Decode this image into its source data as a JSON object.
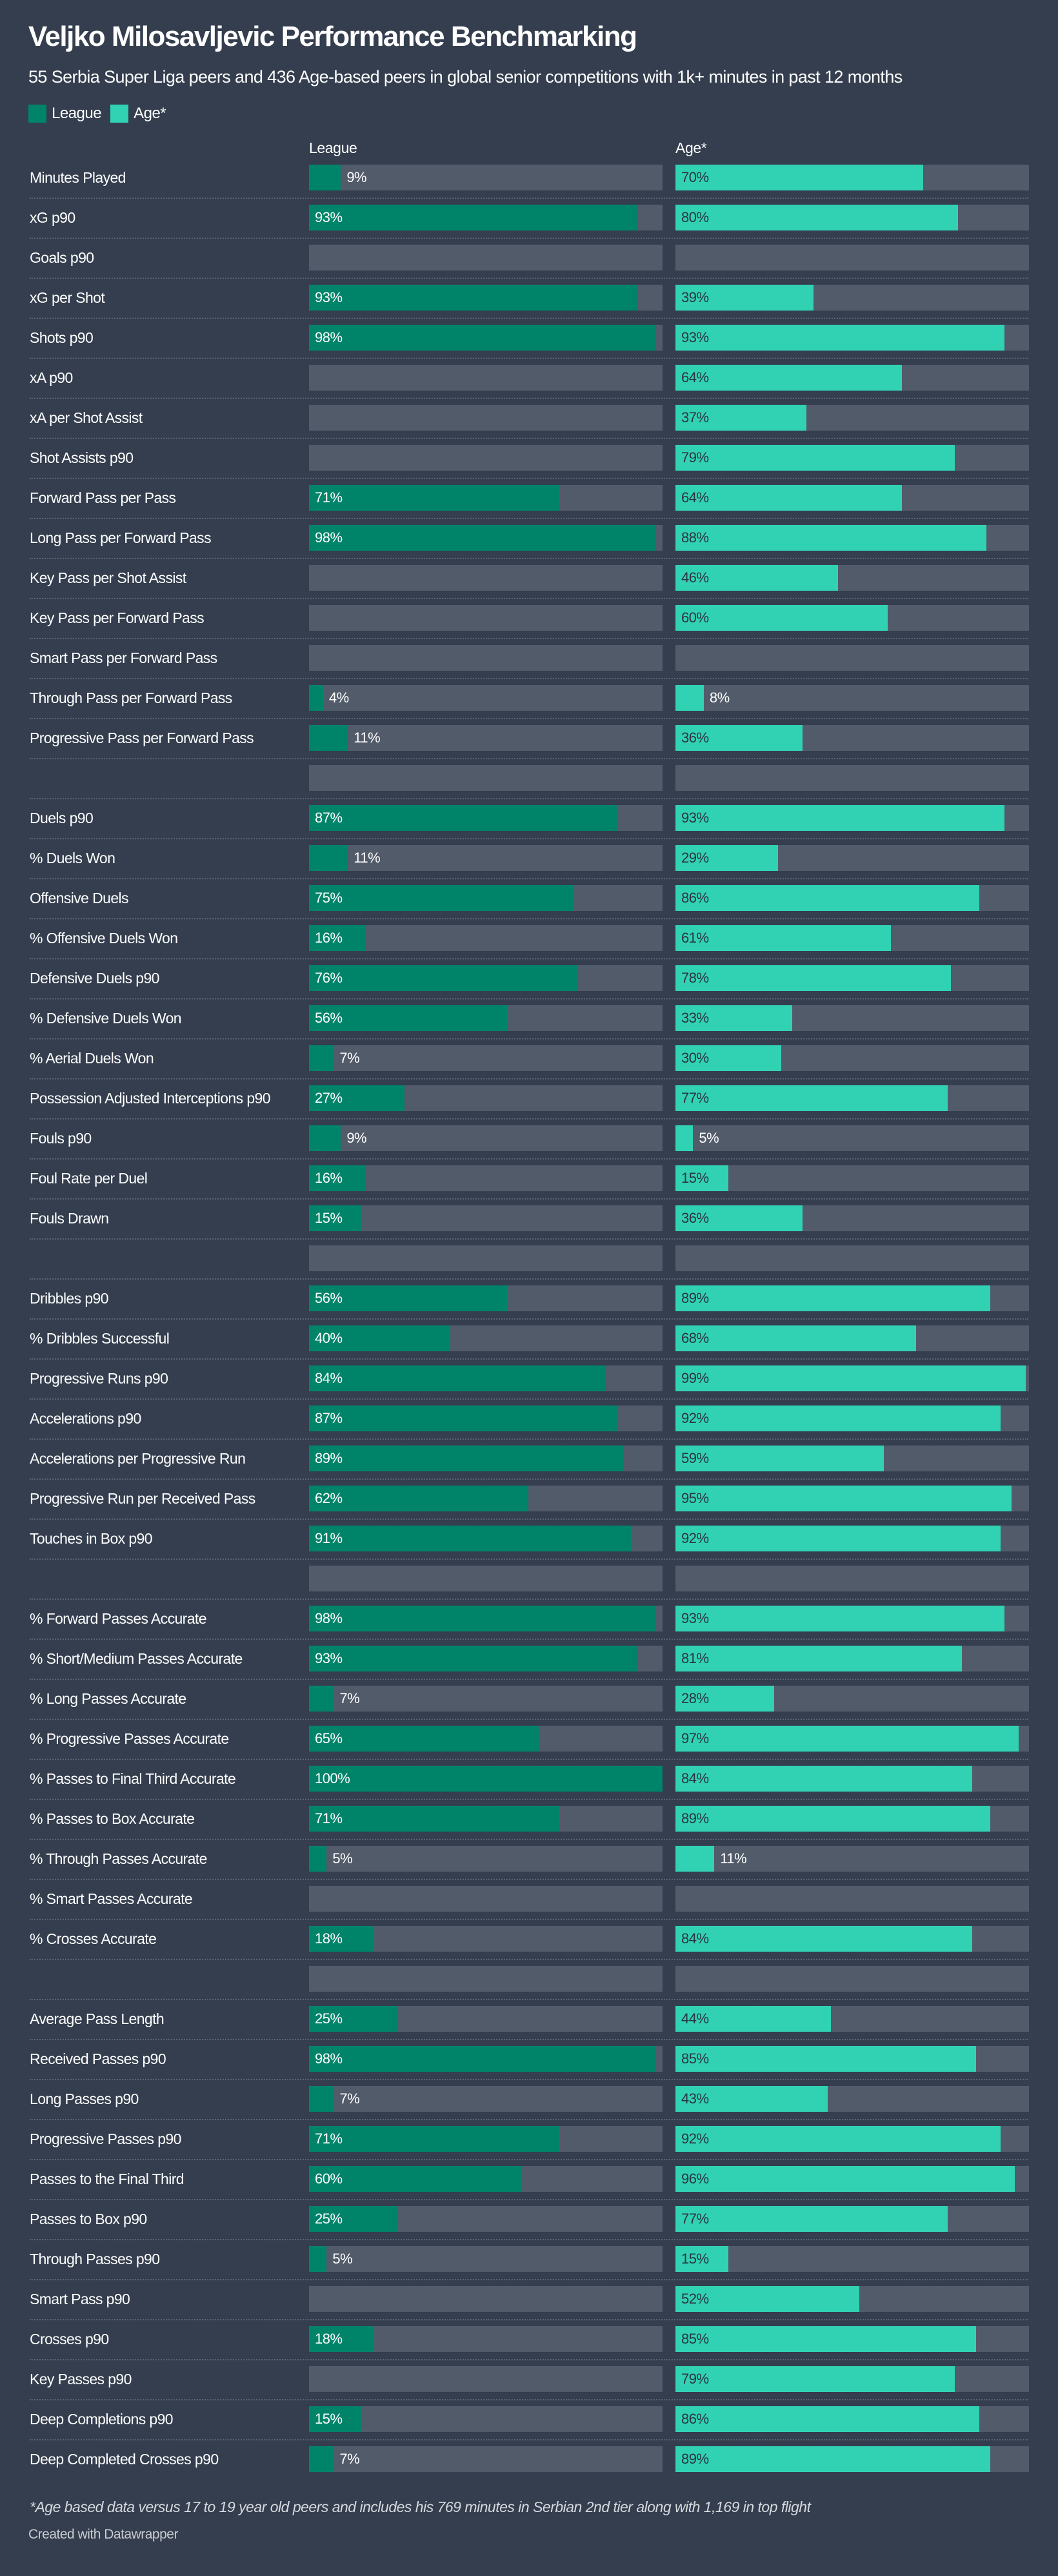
{
  "colors": {
    "league": "#008469",
    "age": "#31d2b4",
    "track": "#525b6a",
    "background": "#343e4e"
  },
  "chart_data": {
    "type": "bar",
    "title": "Veljko Milosavljevic Performance Benchmarking",
    "subtitle": "55 Serbia Super Liga peers and 436 Age-based peers in global senior competitions with 1k+ minutes in past 12 months",
    "legend": [
      {
        "name": "League"
      },
      {
        "name": "Age*"
      }
    ],
    "column_headers": {
      "league": "League",
      "age": "Age*"
    },
    "xlim": [
      0,
      100
    ],
    "unit": "%",
    "rows": [
      {
        "label": "Minutes Played",
        "league": 9,
        "age": 70
      },
      {
        "label": "xG p90",
        "league": 93,
        "age": 80
      },
      {
        "label": "Goals p90",
        "league": null,
        "age": null
      },
      {
        "label": "xG per Shot",
        "league": 93,
        "age": 39
      },
      {
        "label": "Shots p90",
        "league": 98,
        "age": 93
      },
      {
        "label": "xA p90",
        "league": null,
        "age": 64
      },
      {
        "label": "xA per Shot Assist",
        "league": null,
        "age": 37
      },
      {
        "label": "Shot Assists p90",
        "league": null,
        "age": 79
      },
      {
        "label": "Forward Pass per Pass",
        "league": 71,
        "age": 64
      },
      {
        "label": "Long Pass per Forward Pass",
        "league": 98,
        "age": 88
      },
      {
        "label": "Key Pass per Shot Assist",
        "league": null,
        "age": 46
      },
      {
        "label": "Key Pass per Forward Pass",
        "league": null,
        "age": 60
      },
      {
        "label": "Smart Pass per Forward Pass",
        "league": null,
        "age": null
      },
      {
        "label": "Through Pass per Forward Pass",
        "league": 4,
        "age": 8
      },
      {
        "label": "Progressive Pass per Forward Pass",
        "league": 11,
        "age": 36
      },
      {
        "label": "",
        "league": null,
        "age": null
      },
      {
        "label": "Duels p90",
        "league": 87,
        "age": 93
      },
      {
        "label": "% Duels Won",
        "league": 11,
        "age": 29
      },
      {
        "label": "Offensive Duels",
        "league": 75,
        "age": 86
      },
      {
        "label": "% Offensive Duels Won",
        "league": 16,
        "age": 61
      },
      {
        "label": "Defensive Duels p90",
        "league": 76,
        "age": 78
      },
      {
        "label": "% Defensive Duels Won",
        "league": 56,
        "age": 33
      },
      {
        "label": "% Aerial Duels Won",
        "league": 7,
        "age": 30
      },
      {
        "label": "Possession Adjusted Interceptions p90",
        "league": 27,
        "age": 77
      },
      {
        "label": "Fouls p90",
        "league": 9,
        "age": 5
      },
      {
        "label": "Foul Rate per Duel",
        "league": 16,
        "age": 15
      },
      {
        "label": "Fouls Drawn",
        "league": 15,
        "age": 36
      },
      {
        "label": "",
        "league": null,
        "age": null
      },
      {
        "label": "Dribbles p90",
        "league": 56,
        "age": 89
      },
      {
        "label": "% Dribbles Successful",
        "league": 40,
        "age": 68
      },
      {
        "label": "Progressive Runs p90",
        "league": 84,
        "age": 99
      },
      {
        "label": "Accelerations p90",
        "league": 87,
        "age": 92
      },
      {
        "label": "Accelerations per Progressive Run",
        "league": 89,
        "age": 59
      },
      {
        "label": "Progressive Run per Received Pass",
        "league": 62,
        "age": 95
      },
      {
        "label": "Touches in Box p90",
        "league": 91,
        "age": 92
      },
      {
        "label": "",
        "league": null,
        "age": null
      },
      {
        "label": "% Forward Passes Accurate",
        "league": 98,
        "age": 93
      },
      {
        "label": "% Short/Medium Passes Accurate",
        "league": 93,
        "age": 81
      },
      {
        "label": "% Long Passes Accurate",
        "league": 7,
        "age": 28
      },
      {
        "label": "% Progressive Passes Accurate",
        "league": 65,
        "age": 97
      },
      {
        "label": "% Passes to Final Third Accurate",
        "league": 100,
        "age": 84
      },
      {
        "label": "% Passes to Box Accurate",
        "league": 71,
        "age": 89
      },
      {
        "label": "% Through Passes Accurate",
        "league": 5,
        "age": 11
      },
      {
        "label": "% Smart Passes Accurate",
        "league": null,
        "age": null
      },
      {
        "label": "% Crosses Accurate",
        "league": 18,
        "age": 84
      },
      {
        "label": "",
        "league": null,
        "age": null
      },
      {
        "label": "Average Pass Length",
        "league": 25,
        "age": 44
      },
      {
        "label": "Received Passes p90",
        "league": 98,
        "age": 85
      },
      {
        "label": "Long Passes p90",
        "league": 7,
        "age": 43
      },
      {
        "label": "Progressive Passes p90",
        "league": 71,
        "age": 92
      },
      {
        "label": "Passes to the Final Third",
        "league": 60,
        "age": 96
      },
      {
        "label": "Passes to Box p90",
        "league": 25,
        "age": 77
      },
      {
        "label": "Through Passes p90",
        "league": 5,
        "age": 15
      },
      {
        "label": "Smart Pass p90",
        "league": null,
        "age": 52
      },
      {
        "label": "Crosses p90",
        "league": 18,
        "age": 85
      },
      {
        "label": "Key Passes p90",
        "league": null,
        "age": 79
      },
      {
        "label": "Deep Completions p90",
        "league": 15,
        "age": 86
      },
      {
        "label": "Deep Completed Crosses p90",
        "league": 7,
        "age": 89
      }
    ]
  },
  "footnote": "*Age based data versus 17 to 19 year old peers and includes his 769 minutes in Serbian 2nd tier along with 1,169 in top flight",
  "credit": "Created with Datawrapper"
}
